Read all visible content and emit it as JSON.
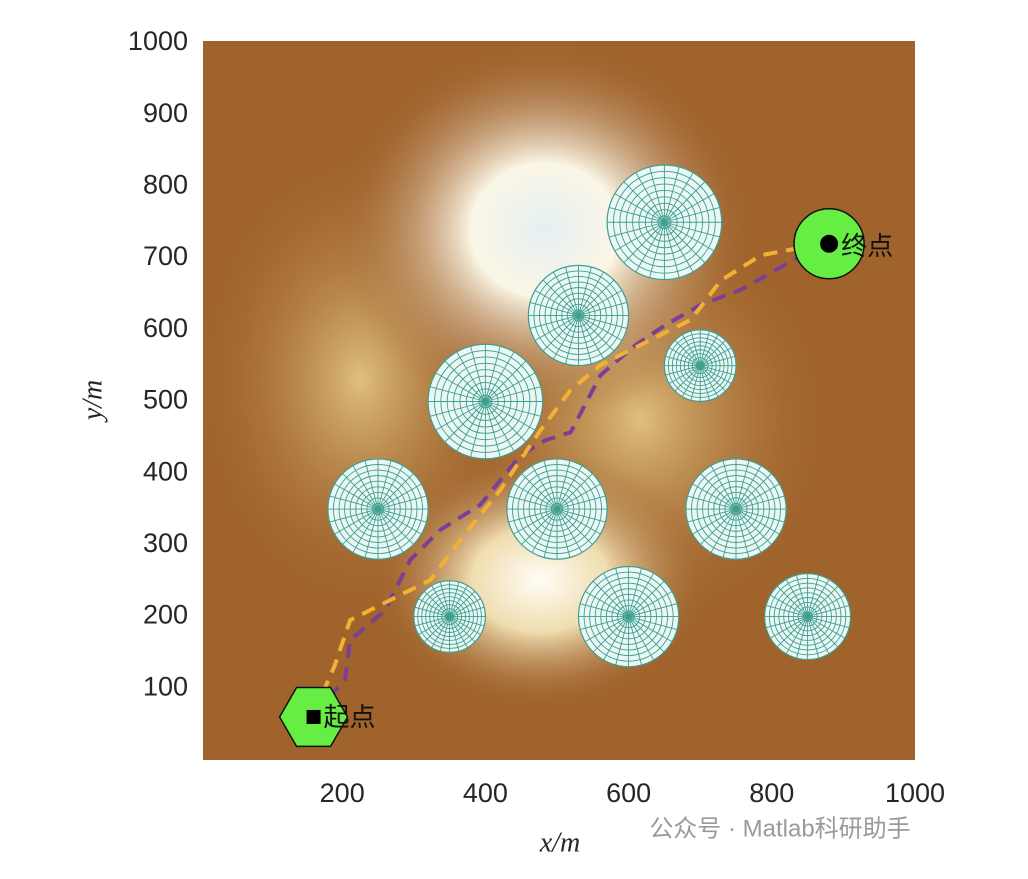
{
  "chart_data": {
    "type": "path-plan",
    "xlabel": "x/m",
    "ylabel": "y/m",
    "xlim": [
      0,
      1000
    ],
    "ylim": [
      0,
      1000
    ],
    "xticks": [
      200,
      400,
      600,
      800,
      1000
    ],
    "yticks": [
      100,
      200,
      300,
      400,
      500,
      600,
      700,
      800,
      900,
      1000
    ],
    "obstacles": [
      {
        "x": 650,
        "y": 750,
        "r": 80
      },
      {
        "x": 530,
        "y": 620,
        "r": 70
      },
      {
        "x": 700,
        "y": 550,
        "r": 50
      },
      {
        "x": 400,
        "y": 500,
        "r": 80
      },
      {
        "x": 250,
        "y": 350,
        "r": 70
      },
      {
        "x": 500,
        "y": 350,
        "r": 70
      },
      {
        "x": 750,
        "y": 350,
        "r": 70
      },
      {
        "x": 350,
        "y": 200,
        "r": 50
      },
      {
        "x": 600,
        "y": 200,
        "r": 70
      },
      {
        "x": 850,
        "y": 200,
        "r": 60
      }
    ],
    "series": [
      {
        "color": "#7b3f96",
        "x": [
          160,
          204,
          211,
          260,
          295,
          337,
          393,
          449,
          484,
          519,
          561,
          610,
          652,
          701,
          757,
          855,
          880
        ],
        "y": [
          63,
          112,
          167,
          209,
          279,
          321,
          356,
          425,
          446,
          457,
          537,
          579,
          607,
          635,
          656,
          711,
          722
        ]
      },
      {
        "color": "#f2b134",
        "x": [
          160,
          190,
          211,
          281,
          323,
          365,
          421,
          477,
          519,
          561,
          631,
          687,
          729,
          785,
          880
        ],
        "y": [
          63,
          133,
          195,
          230,
          251,
          307,
          377,
          460,
          516,
          551,
          586,
          614,
          669,
          704,
          722
        ]
      }
    ],
    "start": {
      "label": "起点",
      "x": 160,
      "y": 60
    },
    "goal": {
      "label": "终点",
      "x": 880,
      "y": 720
    },
    "watermark": "公众号 · Matlab科研助手"
  }
}
